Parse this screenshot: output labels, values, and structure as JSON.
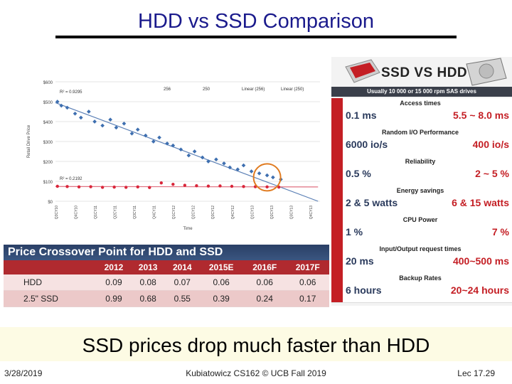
{
  "slide": {
    "title": "HDD vs SSD Comparison",
    "caption": "SSD prices drop much faster than HDD",
    "footer_left": "3/28/2019",
    "footer_center": "Kubiatowicz CS162 © UCB Fall 2019",
    "footer_right": "Lec 17.29"
  },
  "chart_data": [
    {
      "type": "scatter",
      "xlabel": "Time",
      "ylabel": "Retail Drive Price",
      "y_ticks": [
        "$0",
        "$100",
        "$200",
        "$300",
        "$400",
        "$500",
        "$600"
      ],
      "ylim": [
        0,
        600
      ],
      "x_ticks": [
        "Q3CY10",
        "Q4CY10",
        "Q1CY11",
        "Q2CY11",
        "Q3CY11",
        "Q4CY11",
        "Q1CY12",
        "Q2CY12",
        "Q3CY12",
        "Q4CY12",
        "Q1CY13",
        "Q2CY13",
        "Q3CY13",
        "Q4CY13"
      ],
      "legend": [
        "256",
        "250",
        "Linear (256)",
        "Linear (250)"
      ],
      "legend_position": "top",
      "annotations": [
        "R² = 0.9295",
        "R² = 0.2192"
      ],
      "colors": {
        "ssd_256": "#3e6fb0",
        "hdd_250": "#d9263a",
        "trend": "#5a7fb5"
      },
      "series": [
        {
          "name": "256",
          "x": [
            0.1,
            0.3,
            0.6,
            1.0,
            1.3,
            1.7,
            2.0,
            2.4,
            2.8,
            3.1,
            3.5,
            3.9,
            4.2,
            4.6,
            5.0,
            5.3,
            5.7,
            6.0,
            6.4,
            6.8,
            7.1,
            7.5,
            7.8,
            8.2,
            8.6,
            8.9,
            9.3,
            9.6,
            10.0,
            10.4,
            10.8,
            11.1,
            11.5
          ],
          "y": [
            500,
            480,
            470,
            440,
            420,
            450,
            400,
            380,
            410,
            370,
            390,
            340,
            360,
            330,
            300,
            320,
            290,
            280,
            260,
            230,
            250,
            220,
            200,
            210,
            190,
            170,
            160,
            180,
            150,
            140,
            130,
            120,
            110
          ]
        },
        {
          "name": "250",
          "x": [
            0.1,
            0.6,
            1.2,
            1.8,
            2.4,
            3.0,
            3.6,
            4.2,
            4.8,
            5.4,
            6.0,
            6.6,
            7.2,
            7.8,
            8.4,
            9.0,
            9.6,
            10.2,
            10.8,
            11.4
          ],
          "y": [
            75,
            74,
            72,
            73,
            70,
            71,
            70,
            72,
            69,
            92,
            85,
            80,
            78,
            76,
            77,
            75,
            74,
            73,
            72,
            71
          ]
        }
      ]
    },
    {
      "type": "table",
      "title": "Price Crossover Point for HDD and SSD",
      "columns": [
        "",
        "2012",
        "2013",
        "2014",
        "2015E",
        "2016F",
        "2017F"
      ],
      "rows": [
        {
          "label": "HDD",
          "values": [
            "0.09",
            "0.08",
            "0.07",
            "0.06",
            "0.06",
            "0.06"
          ]
        },
        {
          "label": "2.5\" SSD",
          "values": [
            "0.99",
            "0.68",
            "0.55",
            "0.39",
            "0.24",
            "0.17"
          ]
        }
      ]
    }
  ],
  "infographic": {
    "title": "SSD VS HDD",
    "subtitle": "Usually 10 000 or 15 000 rpm SAS drives",
    "rows": [
      {
        "category": "Access times",
        "ssd": "0.1 ms",
        "hdd": "5.5 ~ 8.0 ms"
      },
      {
        "category": "Random I/O Performance",
        "ssd": "6000 io/s",
        "hdd": "400 io/s"
      },
      {
        "category": "Reliability",
        "ssd": "0.5 %",
        "hdd": "2 ~ 5 %"
      },
      {
        "category": "Energy savings",
        "ssd": "2 & 5 watts",
        "hdd": "6 & 15 watts"
      },
      {
        "category": "CPU Power",
        "ssd": "1 %",
        "hdd": "7 %"
      },
      {
        "category": "Input/Output request times",
        "ssd": "20 ms",
        "hdd": "400~500 ms"
      },
      {
        "category": "Backup Rates",
        "ssd": "6 hours",
        "hdd": "20~24 hours"
      }
    ]
  }
}
